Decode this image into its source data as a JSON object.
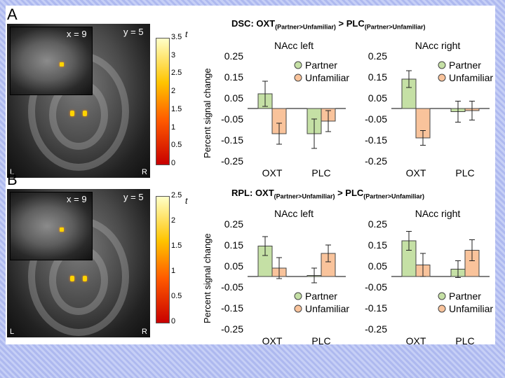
{
  "panels": [
    {
      "letter": "A",
      "title": {
        "prefix": "DSC: OXT",
        "sub1": "(Partner>Unfamiliar)",
        "mid": " > PLC",
        "sub2": "(Partner>Unfamiliar)"
      },
      "brain": {
        "x_coord": "x = 9",
        "y_coord": "y = 5",
        "left": "L",
        "right": "R"
      },
      "colorbar": {
        "label": "t",
        "ticks": [
          "3.5",
          "3",
          "2.5",
          "2",
          "1.5",
          "1",
          "0.5",
          "0"
        ]
      },
      "ylabel": "Percent signal change"
    },
    {
      "letter": "B",
      "title": {
        "prefix": "RPL: OXT",
        "sub1": "(Partner>Unfamiliar)",
        "mid": " > PLC",
        "sub2": "(Partner>Unfamiliar)"
      },
      "brain": {
        "x_coord": "x = 9",
        "y_coord": "y = 5",
        "left": "L",
        "right": "R"
      },
      "colorbar": {
        "label": "t",
        "ticks": [
          "2.5",
          "2",
          "1.5",
          "1",
          "0.5",
          "0"
        ]
      },
      "ylabel": "Percent signal change"
    }
  ],
  "colors": {
    "partner": "#c5e0a5",
    "unfamiliar": "#f9c39b",
    "bar_edge": "#444444"
  },
  "chart_data": [
    {
      "type": "bar",
      "panel": "A",
      "title": "NAcc left",
      "categories": [
        "OXT",
        "PLC"
      ],
      "ylim": [
        -0.25,
        0.25
      ],
      "yticks": [
        "0.25",
        "0.15",
        "0.05",
        "-0.05",
        "-0.15",
        "-0.25"
      ],
      "legend": [
        "Partner",
        "Unfamiliar"
      ],
      "legend_position": "top-right",
      "series": [
        {
          "name": "Partner",
          "values": [
            0.07,
            -0.12
          ],
          "errors": [
            0.06,
            0.07
          ]
        },
        {
          "name": "Unfamiliar",
          "values": [
            -0.12,
            -0.06
          ],
          "errors": [
            0.05,
            0.05
          ]
        }
      ]
    },
    {
      "type": "bar",
      "panel": "A",
      "title": "NAcc right",
      "categories": [
        "OXT",
        "PLC"
      ],
      "ylim": [
        -0.25,
        0.25
      ],
      "yticks": [
        "0.25",
        "0.15",
        "0.05",
        "-0.05",
        "-0.15",
        "-0.25"
      ],
      "legend": [
        "Partner",
        "Unfamiliar"
      ],
      "legend_position": "top-right",
      "series": [
        {
          "name": "Partner",
          "values": [
            0.14,
            -0.015
          ],
          "errors": [
            0.04,
            0.05
          ]
        },
        {
          "name": "Unfamiliar",
          "values": [
            -0.14,
            -0.01
          ],
          "errors": [
            0.035,
            0.045
          ]
        }
      ]
    },
    {
      "type": "bar",
      "panel": "B",
      "title": "NAcc left",
      "categories": [
        "OXT",
        "PLC"
      ],
      "ylim": [
        -0.25,
        0.25
      ],
      "yticks": [
        "0.25",
        "0.15",
        "0.05",
        "-0.05",
        "-0.15",
        "-0.25"
      ],
      "legend": [
        "Partner",
        "Unfamiliar"
      ],
      "legend_position": "bottom-right",
      "series": [
        {
          "name": "Partner",
          "values": [
            0.145,
            0.005
          ],
          "errors": [
            0.045,
            0.035
          ]
        },
        {
          "name": "Unfamiliar",
          "values": [
            0.04,
            0.11
          ],
          "errors": [
            0.05,
            0.04
          ]
        }
      ]
    },
    {
      "type": "bar",
      "panel": "B",
      "title": "NAcc right",
      "categories": [
        "OXT",
        "PLC"
      ],
      "ylim": [
        -0.25,
        0.25
      ],
      "yticks": [
        "0.25",
        "0.15",
        "0.05",
        "-0.05",
        "-0.15",
        "-0.25"
      ],
      "legend": [
        "Partner",
        "Unfamiliar"
      ],
      "legend_position": "bottom-right",
      "series": [
        {
          "name": "Partner",
          "values": [
            0.17,
            0.035
          ],
          "errors": [
            0.045,
            0.04
          ]
        },
        {
          "name": "Unfamiliar",
          "values": [
            0.055,
            0.125
          ],
          "errors": [
            0.055,
            0.05
          ]
        }
      ]
    }
  ]
}
